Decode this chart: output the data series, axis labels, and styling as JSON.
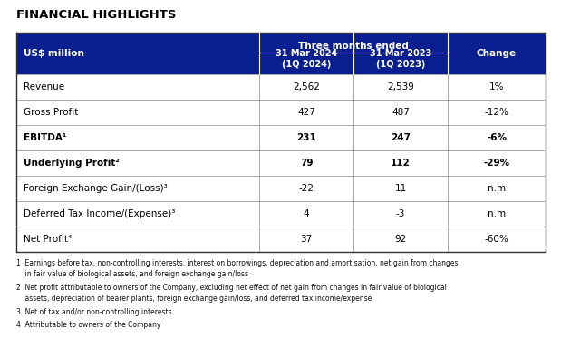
{
  "title": "FINANCIAL HIGHLIGHTS",
  "header_bg": "#0a1f8f",
  "header_text_color": "#ffffff",
  "border_color": "#888888",
  "header_three_months": "Three months ended",
  "col0_header": "US$ million",
  "col1_header": "31 Mar 2024\n(1Q 2024)",
  "col2_header": "31 Mar 2023\n(1Q 2023)",
  "col3_header": "Change",
  "rows": [
    {
      "label": "Revenue",
      "col1": "2,562",
      "col2": "2,539",
      "col3": "1%",
      "bold": false
    },
    {
      "label": "Gross Profit",
      "col1": "427",
      "col2": "487",
      "col3": "-12%",
      "bold": false
    },
    {
      "label": "EBITDA¹",
      "col1": "231",
      "col2": "247",
      "col3": "-6%",
      "bold": true
    },
    {
      "label": "Underlying Profit²",
      "col1": "79",
      "col2": "112",
      "col3": "-29%",
      "bold": true
    },
    {
      "label": "Foreign Exchange Gain/(Loss)³",
      "col1": "-22",
      "col2": "11",
      "col3": "n.m",
      "bold": false
    },
    {
      "label": "Deferred Tax Income/(Expense)³",
      "col1": "4",
      "col2": "-3",
      "col3": "n.m",
      "bold": false
    },
    {
      "label": "Net Profit⁴",
      "col1": "37",
      "col2": "92",
      "col3": "-60%",
      "bold": false
    }
  ],
  "footnotes": [
    "1  Earnings before tax, non-controlling interests, interest on borrowings, depreciation and amortisation, net gain from changes\n    in fair value of biological assets, and foreign exchange gain/loss",
    "2  Net profit attributable to owners of the Company, excluding net effect of net gain from changes in fair value of biological\n    assets, depreciation of bearer plants, foreign exchange gain/loss, and deferred tax income/expense",
    "3  Net of tax and/or non-controlling interests",
    "4  Attributable to owners of the Company"
  ]
}
